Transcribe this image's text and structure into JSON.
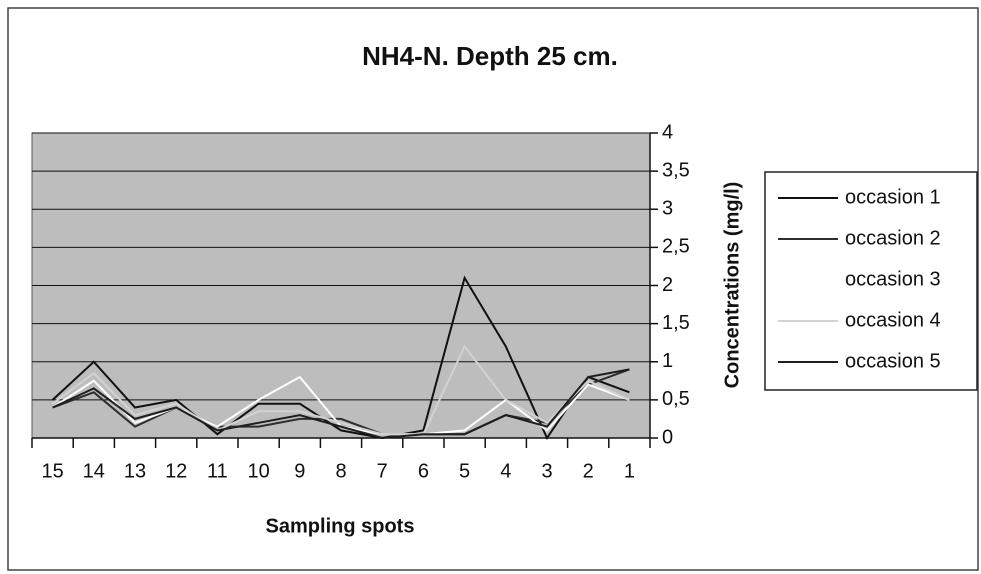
{
  "chart_data": {
    "type": "line",
    "title": "NH4-N. Depth 25 cm.",
    "x_label": "Sampling spots",
    "y_label": "Concentrations (mg/l)",
    "categories": [
      "15",
      "14",
      "13",
      "12",
      "11",
      "10",
      "9",
      "8",
      "7",
      "6",
      "5",
      "4",
      "3",
      "2",
      "1"
    ],
    "series": [
      {
        "name": "occasion 1",
        "color": "#111111",
        "values": [
          0.5,
          1.0,
          0.4,
          0.5,
          0.05,
          0.45,
          0.45,
          0.1,
          0.0,
          0.1,
          2.1,
          1.2,
          0.0,
          0.8,
          0.6
        ]
      },
      {
        "name": "occasion 2",
        "color": "#2e2e2e",
        "values": [
          0.4,
          0.6,
          0.15,
          0.4,
          0.15,
          0.15,
          0.25,
          0.25,
          0.05,
          0.05,
          0.05,
          0.3,
          0.2,
          0.7,
          0.9
        ]
      },
      {
        "name": "occasion 3",
        "color": "#ffffff",
        "values": [
          0.4,
          0.75,
          0.2,
          0.4,
          0.15,
          0.5,
          0.8,
          0.15,
          0.05,
          0.05,
          0.1,
          0.5,
          0.1,
          0.7,
          0.5
        ]
      },
      {
        "name": "occasion 4",
        "color": "#d2d2d2",
        "values": [
          0.45,
          0.85,
          0.3,
          0.45,
          0.1,
          0.35,
          0.35,
          0.2,
          0.05,
          0.05,
          1.2,
          0.5,
          0.2,
          0.75,
          0.5
        ]
      },
      {
        "name": "occasion 5",
        "color": "#1e1e1e",
        "values": [
          0.4,
          0.65,
          0.25,
          0.4,
          0.1,
          0.2,
          0.3,
          0.15,
          0.0,
          0.05,
          0.05,
          0.3,
          0.15,
          0.8,
          0.9
        ]
      }
    ],
    "ylim": [
      0,
      4
    ],
    "yticks": [
      0,
      {
        "value": 0.5,
        "label": "0,5"
      },
      1,
      {
        "value": 1.5,
        "label": "1,5"
      },
      2,
      {
        "value": 2.5,
        "label": "2,5"
      },
      3,
      {
        "value": 3.5,
        "label": "3,5"
      },
      4
    ],
    "grid": true,
    "y_axis_side": "right",
    "legend": "right"
  }
}
